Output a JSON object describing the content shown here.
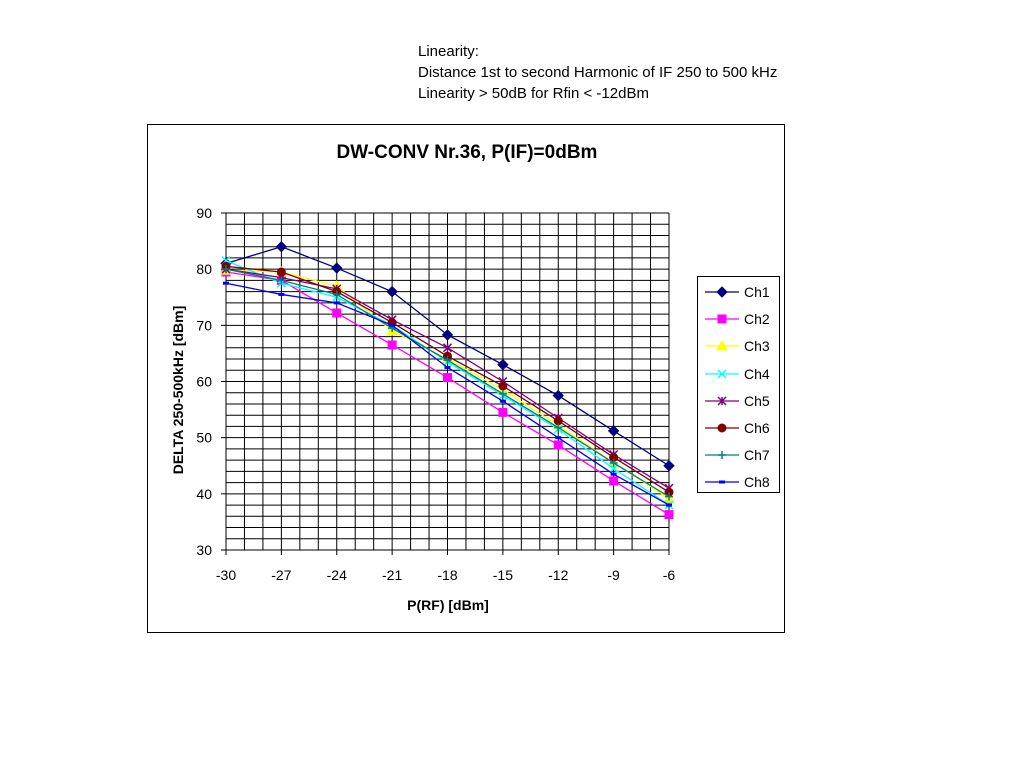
{
  "notes": {
    "line1": "Linearity:",
    "line2": "Distance 1st to second Harmonic of IF 250 to 500 kHz",
    "line3": "Linearity > 50dB for Rfin < -12dBm"
  },
  "chart_data": {
    "type": "line",
    "title": "DW-CONV Nr.36, P(IF)=0dBm",
    "xlabel": "P(RF) [dBm]",
    "ylabel": "DELTA 250-500kHz [dBm]",
    "xlim": [
      -30,
      -6
    ],
    "ylim": [
      30,
      90
    ],
    "x": [
      -30,
      -27,
      -24,
      -21,
      -18,
      -15,
      -12,
      -9,
      -6
    ],
    "x_tick_labels": [
      "-30",
      "-27",
      "-24",
      "-21",
      "-18",
      "-15",
      "-12",
      "-9",
      "-6"
    ],
    "y_tick_labels": [
      "30",
      "40",
      "50",
      "60",
      "70",
      "80",
      "90"
    ],
    "grid": true,
    "legend_position": "right",
    "series": [
      {
        "name": "Ch1",
        "color": "#000080",
        "marker": "diamond",
        "values": [
          81.0,
          84.0,
          80.2,
          76.0,
          68.3,
          63.0,
          57.5,
          51.2,
          45.0
        ]
      },
      {
        "name": "Ch2",
        "color": "#FF00FF",
        "marker": "square",
        "values": [
          79.5,
          78.0,
          72.2,
          66.5,
          60.7,
          54.5,
          48.7,
          42.3,
          36.3
        ]
      },
      {
        "name": "Ch3",
        "color": "#FFFF00",
        "marker": "triangle",
        "values": [
          79.8,
          79.5,
          77.0,
          69.0,
          64.0,
          58.5,
          52.2,
          45.5,
          39.2
        ]
      },
      {
        "name": "Ch4",
        "color": "#00FFFF",
        "marker": "x",
        "values": [
          81.5,
          77.5,
          75.0,
          70.0,
          63.5,
          57.5,
          51.5,
          44.5,
          38.0
        ]
      },
      {
        "name": "Ch5",
        "color": "#800080",
        "marker": "star",
        "values": [
          80.0,
          78.5,
          76.5,
          71.0,
          66.0,
          60.0,
          53.5,
          47.0,
          41.0
        ]
      },
      {
        "name": "Ch6",
        "color": "#800000",
        "marker": "circle",
        "values": [
          80.5,
          79.5,
          76.0,
          70.5,
          64.5,
          59.2,
          53.0,
          46.5,
          40.3
        ]
      },
      {
        "name": "Ch7",
        "color": "#008080",
        "marker": "plus",
        "values": [
          80.0,
          78.0,
          75.5,
          69.5,
          63.8,
          57.8,
          51.8,
          45.5,
          39.5
        ]
      },
      {
        "name": "Ch8",
        "color": "#0000FF",
        "marker": "dash",
        "values": [
          77.5,
          75.5,
          74.0,
          70.0,
          62.5,
          56.5,
          50.0,
          43.5,
          38.0
        ]
      }
    ]
  }
}
